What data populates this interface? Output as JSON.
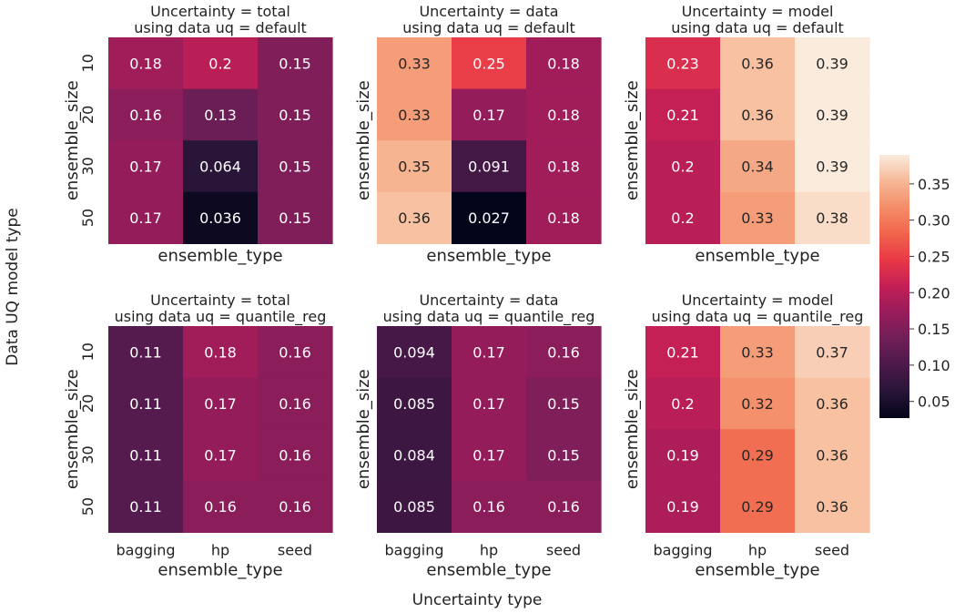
{
  "figure": {
    "supxlabel": "Uncertainty type",
    "supylabel": "Data UQ model type"
  },
  "colorbar": {
    "colormap": "rocket",
    "vmin": 0.027,
    "vmax": 0.39,
    "ticks": [
      "0.05",
      "0.10",
      "0.15",
      "0.20",
      "0.25",
      "0.30",
      "0.35"
    ]
  },
  "chart_data": [
    {
      "type": "heatmap",
      "title_line1": "Uncertainty = total",
      "title_line2": "using data uq = default",
      "xlabel": "ensemble_type",
      "ylabel": "ensemble_size",
      "show_xticklabels": false,
      "show_yticklabels": true,
      "x_categories": [
        "bagging",
        "hp",
        "seed"
      ],
      "y_categories": [
        "10",
        "20",
        "30",
        "50"
      ],
      "values": [
        [
          0.18,
          0.2,
          0.15
        ],
        [
          0.16,
          0.13,
          0.15
        ],
        [
          0.17,
          0.064,
          0.15
        ],
        [
          0.17,
          0.036,
          0.15
        ]
      ]
    },
    {
      "type": "heatmap",
      "title_line1": "Uncertainty = data",
      "title_line2": "using data uq = default",
      "xlabel": "ensemble_type",
      "ylabel": "ensemble_size",
      "show_xticklabels": false,
      "show_yticklabels": false,
      "x_categories": [
        "bagging",
        "hp",
        "seed"
      ],
      "y_categories": [
        "10",
        "20",
        "30",
        "50"
      ],
      "values": [
        [
          0.33,
          0.25,
          0.18
        ],
        [
          0.33,
          0.17,
          0.18
        ],
        [
          0.35,
          0.091,
          0.18
        ],
        [
          0.36,
          0.027,
          0.18
        ]
      ]
    },
    {
      "type": "heatmap",
      "title_line1": "Uncertainty = model",
      "title_line2": "using data uq = default",
      "xlabel": "ensemble_type",
      "ylabel": "ensemble_size",
      "show_xticklabels": false,
      "show_yticklabels": false,
      "x_categories": [
        "bagging",
        "hp",
        "seed"
      ],
      "y_categories": [
        "10",
        "20",
        "30",
        "50"
      ],
      "values": [
        [
          0.23,
          0.36,
          0.39
        ],
        [
          0.21,
          0.36,
          0.39
        ],
        [
          0.2,
          0.34,
          0.39
        ],
        [
          0.2,
          0.33,
          0.38
        ]
      ]
    },
    {
      "type": "heatmap",
      "title_line1": "Uncertainty = total",
      "title_line2": "using data uq = quantile_reg",
      "xlabel": "ensemble_type",
      "ylabel": "ensemble_size",
      "show_xticklabels": true,
      "show_yticklabels": true,
      "x_categories": [
        "bagging",
        "hp",
        "seed"
      ],
      "y_categories": [
        "10",
        "20",
        "30",
        "50"
      ],
      "values": [
        [
          0.11,
          0.18,
          0.16
        ],
        [
          0.11,
          0.17,
          0.16
        ],
        [
          0.11,
          0.17,
          0.16
        ],
        [
          0.11,
          0.16,
          0.16
        ]
      ]
    },
    {
      "type": "heatmap",
      "title_line1": "Uncertainty = data",
      "title_line2": "using data uq = quantile_reg",
      "xlabel": "ensemble_type",
      "ylabel": "ensemble_size",
      "show_xticklabels": true,
      "show_yticklabels": false,
      "x_categories": [
        "bagging",
        "hp",
        "seed"
      ],
      "y_categories": [
        "10",
        "20",
        "30",
        "50"
      ],
      "values": [
        [
          0.094,
          0.17,
          0.16
        ],
        [
          0.085,
          0.17,
          0.15
        ],
        [
          0.084,
          0.17,
          0.15
        ],
        [
          0.085,
          0.16,
          0.16
        ]
      ]
    },
    {
      "type": "heatmap",
      "title_line1": "Uncertainty = model",
      "title_line2": "using data uq = quantile_reg",
      "xlabel": "ensemble_type",
      "ylabel": "ensemble_size",
      "show_xticklabels": true,
      "show_yticklabels": false,
      "x_categories": [
        "bagging",
        "hp",
        "seed"
      ],
      "y_categories": [
        "10",
        "20",
        "30",
        "50"
      ],
      "values": [
        [
          0.21,
          0.33,
          0.37
        ],
        [
          0.2,
          0.32,
          0.36
        ],
        [
          0.19,
          0.29,
          0.36
        ],
        [
          0.19,
          0.29,
          0.36
        ]
      ]
    }
  ]
}
